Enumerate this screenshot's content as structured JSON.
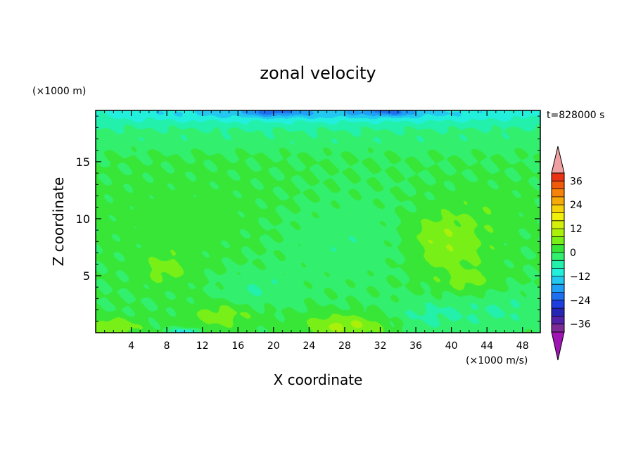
{
  "chart_data": {
    "type": "heatmap",
    "title": "zonal velocity",
    "xlabel": "X coordinate",
    "ylabel": "Z coordinate",
    "x_unit": "(×1000 m/s)",
    "y_unit": "(×1000 m)",
    "time_label": "t=828000 s",
    "xlim": [
      0,
      50
    ],
    "ylim": [
      0,
      19.5
    ],
    "x_ticks": [
      4,
      8,
      12,
      16,
      20,
      24,
      28,
      32,
      36,
      40,
      44,
      48
    ],
    "y_ticks": [
      5,
      10,
      15
    ],
    "x_tick_labels": [
      "4",
      "8",
      "12",
      "16",
      "20",
      "24",
      "28",
      "32",
      "36",
      "40",
      "44",
      "48"
    ],
    "y_tick_labels": [
      "5",
      "10",
      "15"
    ],
    "colorbar": {
      "min": -40,
      "max": 40,
      "step": 4,
      "tick_values": [
        36,
        24,
        12,
        0,
        -12,
        -24,
        -36
      ],
      "tick_labels": [
        "36",
        "24",
        "12",
        "0",
        "−12",
        "−24",
        "−36"
      ],
      "colors": [
        "#7d2c96",
        "#5222a8",
        "#2626b4",
        "#1e3ee0",
        "#1e6ef0",
        "#1e9ef5",
        "#23c8f0",
        "#23f0dc",
        "#23f0aa",
        "#32f06e",
        "#37e637",
        "#78f018",
        "#aaf00a",
        "#d2f00a",
        "#f0f00a",
        "#f5d20a",
        "#f5aa0a",
        "#f5820a",
        "#f05a0a",
        "#eb3214"
      ],
      "over_color": "#f0a0a0",
      "under_color": "#a014b4"
    },
    "field": {
      "background": 0,
      "features": [
        {
          "x": 25,
          "y": 19.4,
          "sx": 30,
          "sz": 0.7,
          "v": -12
        },
        {
          "x": 25,
          "y": 18.5,
          "sx": 60,
          "sz": 1.0,
          "v": -6
        },
        {
          "x": 25,
          "y": 16.8,
          "sx": 60,
          "sz": 0.8,
          "v": -2.5
        },
        {
          "x": 20,
          "y": 19.4,
          "sx": 3,
          "sz": 0.4,
          "v": -8
        },
        {
          "x": 33,
          "y": 19.4,
          "sx": 3,
          "sz": 0.4,
          "v": -8
        },
        {
          "x": 28,
          "y": 8,
          "sx": 8,
          "sz": 3.5,
          "v": -3
        },
        {
          "x": 18,
          "y": 3.8,
          "sx": 4,
          "sz": 1.5,
          "v": -4
        },
        {
          "x": 38,
          "y": 1.5,
          "sx": 5,
          "sz": 1.5,
          "v": -5
        },
        {
          "x": 46,
          "y": 2,
          "sx": 4,
          "sz": 1.5,
          "v": -4
        },
        {
          "x": 10,
          "y": 0,
          "sx": 1.5,
          "sz": 0.35,
          "v": -14
        },
        {
          "x": 40,
          "y": 7.5,
          "sx": 5,
          "sz": 3,
          "v": 6
        },
        {
          "x": 42,
          "y": 4.5,
          "sx": 3,
          "sz": 1,
          "v": 4
        },
        {
          "x": 38,
          "y": 8.5,
          "sx": 3,
          "sz": 1.5,
          "v": 3
        },
        {
          "x": 8,
          "y": 5.5,
          "sx": 3,
          "sz": 1.5,
          "v": 5
        },
        {
          "x": 14,
          "y": 1.5,
          "sx": 4,
          "sz": 1.2,
          "v": 6
        },
        {
          "x": 28,
          "y": 0.6,
          "sx": 5,
          "sz": 1,
          "v": 9
        },
        {
          "x": 2,
          "y": 0.5,
          "sx": 3,
          "sz": 0.8,
          "v": 8
        },
        {
          "x": 10,
          "y": 10,
          "sx": 12,
          "sz": 4,
          "v": 2
        },
        {
          "x": 44,
          "y": 11,
          "sx": 6,
          "sz": 2,
          "v": 2
        }
      ]
    }
  }
}
